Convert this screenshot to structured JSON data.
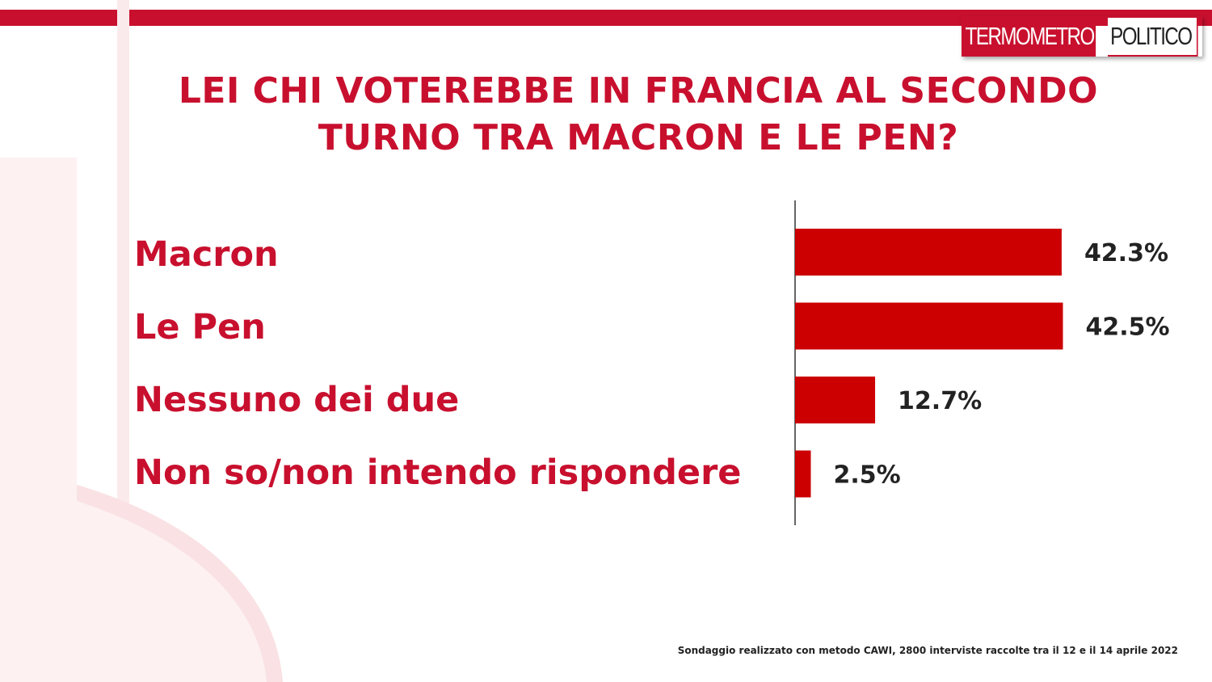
{
  "logo": {
    "part1": "TERMOMETRO",
    "part2": "POLITICO"
  },
  "title_lines": [
    "LEI CHI VOTEREBBE IN FRANCIA AL SECONDO",
    "TURNO TRA MACRON E LE PEN?"
  ],
  "footnote": "Sondaggio realizzato con metodo CAWI, 2800 interviste raccolte tra il 12 e il 14 aprile 2022",
  "colors": {
    "accent": "#c8102e",
    "bar": "#cc0000",
    "value_text": "#222222"
  },
  "chart_data": {
    "type": "bar",
    "orientation": "horizontal",
    "categories": [
      "Macron",
      "Le Pen",
      "Nessuno dei due",
      "Non so/non intendo rispondere"
    ],
    "values": [
      42.3,
      42.5,
      12.7,
      2.5
    ],
    "value_labels": [
      "42.3%",
      "42.5%",
      "12.7%",
      "2.5%"
    ],
    "unit": "%",
    "grid": false,
    "legend": "none"
  }
}
